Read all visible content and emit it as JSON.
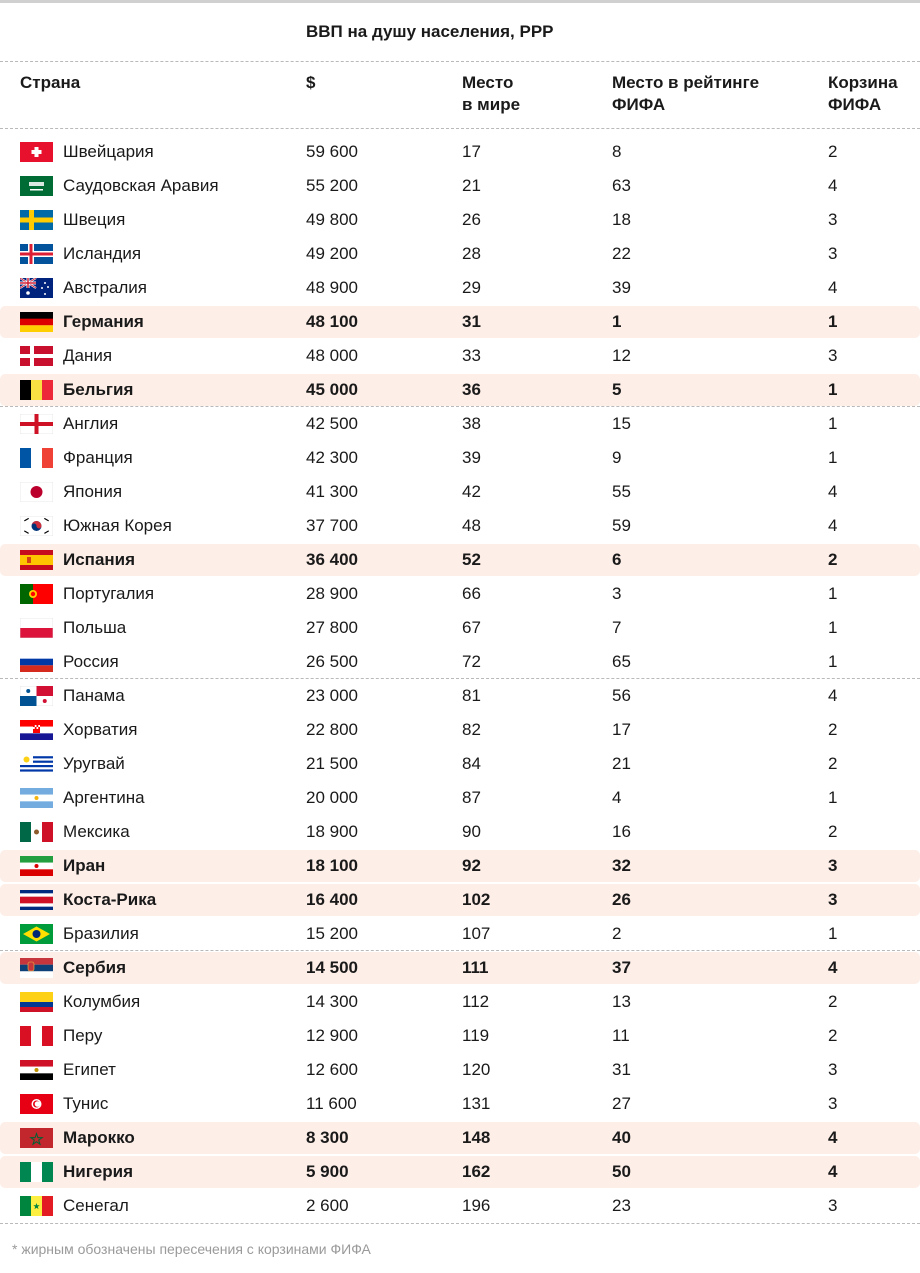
{
  "super_header": "ВВП на душу населения, PPP",
  "columns": {
    "country": "Страна",
    "gdp": "$",
    "world_rank": "Место\nв мире",
    "fifa_rank": "Место в рейтинге\nФИФА",
    "fifa_pot": "Корзина\nФИФА"
  },
  "rows": [
    {
      "country": "Швейцария",
      "gdp": "59 600",
      "world_rank": "17",
      "fifa_rank": "8",
      "pot": "2",
      "flag": "switzerland-flag-icon",
      "bold": false,
      "sep": false
    },
    {
      "country": "Саудовская Аравия",
      "gdp": "55 200",
      "world_rank": "21",
      "fifa_rank": "63",
      "pot": "4",
      "flag": "saudi-arabia-flag-icon",
      "bold": false,
      "sep": false
    },
    {
      "country": "Швеция",
      "gdp": "49 800",
      "world_rank": "26",
      "fifa_rank": "18",
      "pot": "3",
      "flag": "sweden-flag-icon",
      "bold": false,
      "sep": false
    },
    {
      "country": "Исландия",
      "gdp": "49 200",
      "world_rank": "28",
      "fifa_rank": "22",
      "pot": "3",
      "flag": "iceland-flag-icon",
      "bold": false,
      "sep": false
    },
    {
      "country": "Австралия",
      "gdp": "48 900",
      "world_rank": "29",
      "fifa_rank": "39",
      "pot": "4",
      "flag": "australia-flag-icon",
      "bold": false,
      "sep": false
    },
    {
      "country": "Германия",
      "gdp": "48 100",
      "world_rank": "31",
      "fifa_rank": "1",
      "pot": "1",
      "flag": "germany-flag-icon",
      "bold": true,
      "sep": false
    },
    {
      "country": "Дания",
      "gdp": "48 000",
      "world_rank": "33",
      "fifa_rank": "12",
      "pot": "3",
      "flag": "denmark-flag-icon",
      "bold": false,
      "sep": false
    },
    {
      "country": "Бельгия",
      "gdp": "45 000",
      "world_rank": "36",
      "fifa_rank": "5",
      "pot": "1",
      "flag": "belgium-flag-icon",
      "bold": true,
      "sep": false
    },
    {
      "country": "Англия",
      "gdp": "42 500",
      "world_rank": "38",
      "fifa_rank": "15",
      "pot": "1",
      "flag": "england-flag-icon",
      "bold": false,
      "sep": true
    },
    {
      "country": "Франция",
      "gdp": "42 300",
      "world_rank": "39",
      "fifa_rank": "9",
      "pot": "1",
      "flag": "france-flag-icon",
      "bold": false,
      "sep": false
    },
    {
      "country": "Япония",
      "gdp": "41 300",
      "world_rank": "42",
      "fifa_rank": "55",
      "pot": "4",
      "flag": "japan-flag-icon",
      "bold": false,
      "sep": false
    },
    {
      "country": "Южная Корея",
      "gdp": "37 700",
      "world_rank": "48",
      "fifa_rank": "59",
      "pot": "4",
      "flag": "south-korea-flag-icon",
      "bold": false,
      "sep": false
    },
    {
      "country": "Испания",
      "gdp": "36 400",
      "world_rank": "52",
      "fifa_rank": "6",
      "pot": "2",
      "flag": "spain-flag-icon",
      "bold": true,
      "sep": false
    },
    {
      "country": "Португалия",
      "gdp": "28 900",
      "world_rank": "66",
      "fifa_rank": "3",
      "pot": "1",
      "flag": "portugal-flag-icon",
      "bold": false,
      "sep": false
    },
    {
      "country": "Польша",
      "gdp": "27 800",
      "world_rank": "67",
      "fifa_rank": "7",
      "pot": "1",
      "flag": "poland-flag-icon",
      "bold": false,
      "sep": false
    },
    {
      "country": "Россия",
      "gdp": "26 500",
      "world_rank": "72",
      "fifa_rank": "65",
      "pot": "1",
      "flag": "russia-flag-icon",
      "bold": false,
      "sep": false
    },
    {
      "country": "Панама",
      "gdp": "23 000",
      "world_rank": "81",
      "fifa_rank": "56",
      "pot": "4",
      "flag": "panama-flag-icon",
      "bold": false,
      "sep": true
    },
    {
      "country": "Хорватия",
      "gdp": "22 800",
      "world_rank": "82",
      "fifa_rank": "17",
      "pot": "2",
      "flag": "croatia-flag-icon",
      "bold": false,
      "sep": false
    },
    {
      "country": "Уругвай",
      "gdp": "21 500",
      "world_rank": "84",
      "fifa_rank": "21",
      "pot": "2",
      "flag": "uruguay-flag-icon",
      "bold": false,
      "sep": false
    },
    {
      "country": "Аргентина",
      "gdp": "20 000",
      "world_rank": "87",
      "fifa_rank": "4",
      "pot": "1",
      "flag": "argentina-flag-icon",
      "bold": false,
      "sep": false
    },
    {
      "country": "Мексика",
      "gdp": "18 900",
      "world_rank": "90",
      "fifa_rank": "16",
      "pot": "2",
      "flag": "mexico-flag-icon",
      "bold": false,
      "sep": false
    },
    {
      "country": "Иран",
      "gdp": "18 100",
      "world_rank": "92",
      "fifa_rank": "32",
      "pot": "3",
      "flag": "iran-flag-icon",
      "bold": true,
      "sep": false
    },
    {
      "country": "Коста-Рика",
      "gdp": "16 400",
      "world_rank": "102",
      "fifa_rank": "26",
      "pot": "3",
      "flag": "costa-rica-flag-icon",
      "bold": true,
      "sep": false
    },
    {
      "country": "Бразилия",
      "gdp": "15 200",
      "world_rank": "107",
      "fifa_rank": "2",
      "pot": "1",
      "flag": "brazil-flag-icon",
      "bold": false,
      "sep": false
    },
    {
      "country": "Сербия",
      "gdp": "14 500",
      "world_rank": "111",
      "fifa_rank": "37",
      "pot": "4",
      "flag": "serbia-flag-icon",
      "bold": true,
      "sep": true
    },
    {
      "country": "Колумбия",
      "gdp": "14 300",
      "world_rank": "112",
      "fifa_rank": "13",
      "pot": "2",
      "flag": "colombia-flag-icon",
      "bold": false,
      "sep": false
    },
    {
      "country": "Перу",
      "gdp": "12 900",
      "world_rank": "119",
      "fifa_rank": "11",
      "pot": "2",
      "flag": "peru-flag-icon",
      "bold": false,
      "sep": false
    },
    {
      "country": "Египет",
      "gdp": "12 600",
      "world_rank": "120",
      "fifa_rank": "31",
      "pot": "3",
      "flag": "egypt-flag-icon",
      "bold": false,
      "sep": false
    },
    {
      "country": "Тунис",
      "gdp": "11 600",
      "world_rank": "131",
      "fifa_rank": "27",
      "pot": "3",
      "flag": "tunisia-flag-icon",
      "bold": false,
      "sep": false
    },
    {
      "country": "Марокко",
      "gdp": "8 300",
      "world_rank": "148",
      "fifa_rank": "40",
      "pot": "4",
      "flag": "morocco-flag-icon",
      "bold": true,
      "sep": false
    },
    {
      "country": "Нигерия",
      "gdp": "5 900",
      "world_rank": "162",
      "fifa_rank": "50",
      "pot": "4",
      "flag": "nigeria-flag-icon",
      "bold": true,
      "sep": false
    },
    {
      "country": "Сенегал",
      "gdp": "2 600",
      "world_rank": "196",
      "fifa_rank": "23",
      "pot": "3",
      "flag": "senegal-flag-icon",
      "bold": false,
      "sep": false
    }
  ],
  "footnote": "* жирным обозначены пересечения с корзинами ФИФА",
  "colors": {
    "highlight": "#fdeee8",
    "divider": "#b9b9b9",
    "footnote": "#9a9a9a"
  }
}
